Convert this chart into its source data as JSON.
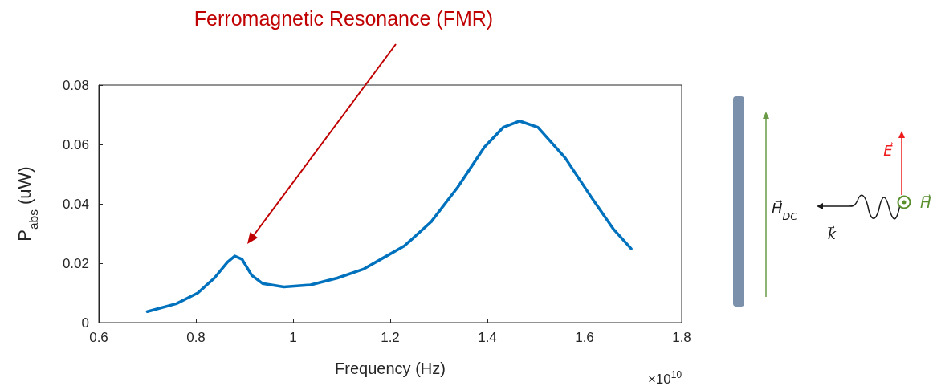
{
  "chart_data": {
    "type": "line",
    "color": "#0072bd",
    "x": [
      0.7,
      0.76,
      0.804,
      0.838,
      0.865,
      0.88,
      0.895,
      0.915,
      0.937,
      0.981,
      1.036,
      1.091,
      1.146,
      1.19,
      1.229,
      1.284,
      1.339,
      1.394,
      1.433,
      1.466,
      1.504,
      1.56,
      1.615,
      1.659,
      1.696
    ],
    "values": [
      0.0037,
      0.0064,
      0.01,
      0.015,
      0.0204,
      0.0224,
      0.0213,
      0.0159,
      0.0132,
      0.012,
      0.0127,
      0.015,
      0.0181,
      0.0222,
      0.0258,
      0.0339,
      0.0456,
      0.0591,
      0.0658,
      0.0679,
      0.0658,
      0.0555,
      0.042,
      0.0316,
      0.0249
    ],
    "xlabel": "Frequency (Hz)",
    "ylabel": "P$_{abs}$ (uW)",
    "xlim": [
      0.6,
      1.8
    ],
    "xticks": [
      0.6,
      0.8,
      1,
      1.2,
      1.4,
      1.6,
      1.8
    ],
    "ylim": [
      0,
      0.08
    ],
    "yticks": [
      0,
      0.02,
      0.04,
      0.06,
      0.08
    ],
    "annotations": [
      "Ferromagnetic Resonance (FMR)",
      "×10$^{10}$",
      "H⃗$_{DC}$",
      "k⃗",
      "E⃗",
      "H⃗"
    ]
  }
}
